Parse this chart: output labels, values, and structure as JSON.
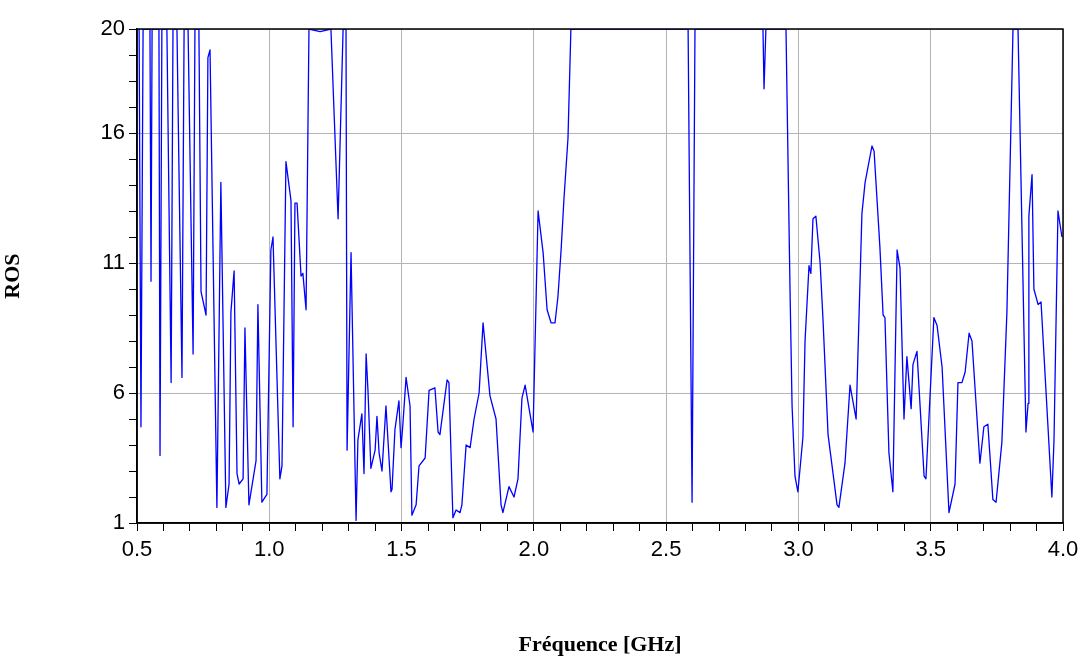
{
  "chart_data": {
    "type": "line",
    "xlabel": "Fréquence [GHz]",
    "ylabel": "ROS",
    "xlim": [
      0.5,
      4.0
    ],
    "ylim": [
      1,
      20
    ],
    "xticks": [
      {
        "value": 0.5,
        "label": "0.5"
      },
      {
        "value": 0.6,
        "label": null
      },
      {
        "value": 0.7,
        "label": null
      },
      {
        "value": 0.8,
        "label": null
      },
      {
        "value": 0.9,
        "label": null
      },
      {
        "value": 1.0,
        "label": "1.0"
      },
      {
        "value": 1.1,
        "label": null
      },
      {
        "value": 1.2,
        "label": null
      },
      {
        "value": 1.3,
        "label": null
      },
      {
        "value": 1.4,
        "label": null
      },
      {
        "value": 1.5,
        "label": "1.5"
      },
      {
        "value": 1.6,
        "label": null
      },
      {
        "value": 1.7,
        "label": null
      },
      {
        "value": 1.8,
        "label": null
      },
      {
        "value": 1.9,
        "label": null
      },
      {
        "value": 2.0,
        "label": "2.0"
      },
      {
        "value": 2.1,
        "label": null
      },
      {
        "value": 2.2,
        "label": null
      },
      {
        "value": 2.3,
        "label": null
      },
      {
        "value": 2.4,
        "label": null
      },
      {
        "value": 2.5,
        "label": "2.5"
      },
      {
        "value": 2.6,
        "label": null
      },
      {
        "value": 2.7,
        "label": null
      },
      {
        "value": 2.8,
        "label": null
      },
      {
        "value": 2.9,
        "label": null
      },
      {
        "value": 3.0,
        "label": "3.0"
      },
      {
        "value": 3.1,
        "label": null
      },
      {
        "value": 3.2,
        "label": null
      },
      {
        "value": 3.3,
        "label": null
      },
      {
        "value": 3.4,
        "label": null
      },
      {
        "value": 3.5,
        "label": "3.5"
      },
      {
        "value": 3.6,
        "label": null
      },
      {
        "value": 3.7,
        "label": null
      },
      {
        "value": 3.8,
        "label": null
      },
      {
        "value": 3.9,
        "label": null
      },
      {
        "value": 4.0,
        "label": "4.0"
      }
    ],
    "yticks": [
      1,
      {
        "value": 2,
        "label": null
      },
      {
        "value": 3,
        "label": null
      },
      {
        "value": 4,
        "label": null
      },
      {
        "value": 5,
        "label": null
      },
      6,
      {
        "value": 7,
        "label": null
      },
      {
        "value": 8,
        "label": null
      },
      {
        "value": 9,
        "label": null
      },
      {
        "value": 10,
        "label": null
      },
      11,
      {
        "value": 12,
        "label": null
      },
      {
        "value": 13,
        "label": null
      },
      {
        "value": 14,
        "label": null
      },
      {
        "value": 15,
        "label": null
      },
      16,
      {
        "value": 17,
        "label": null
      },
      {
        "value": 18,
        "label": null
      },
      {
        "value": 19,
        "label": null
      },
      20
    ],
    "grid": true,
    "x": [
      0.508,
      0.515,
      0.523,
      0.549,
      0.553,
      0.557,
      0.583,
      0.587,
      0.594,
      0.613,
      0.629,
      0.636,
      0.651,
      0.67,
      0.678,
      0.693,
      0.712,
      0.719,
      0.734,
      0.742,
      0.761,
      0.768,
      0.776,
      0.802,
      0.817,
      0.836,
      0.848,
      0.855,
      0.867,
      0.878,
      0.886,
      0.901,
      0.908,
      0.923,
      0.95,
      0.957,
      0.972,
      0.991,
      1.006,
      1.014,
      1.04,
      1.048,
      1.063,
      1.082,
      1.09,
      1.097,
      1.105,
      1.12,
      1.127,
      1.139,
      1.15,
      1.192,
      1.233,
      1.26,
      1.279,
      1.29,
      1.294,
      1.309,
      1.328,
      1.335,
      1.35,
      1.358,
      1.366,
      1.373,
      1.384,
      1.4,
      1.407,
      1.415,
      1.426,
      1.441,
      1.46,
      1.464,
      1.475,
      1.49,
      1.498,
      1.505,
      1.517,
      1.532,
      1.539,
      1.555,
      1.566,
      1.589,
      1.604,
      1.626,
      1.638,
      1.645,
      1.672,
      1.679,
      1.694,
      1.706,
      1.721,
      1.728,
      1.744,
      1.759,
      1.774,
      1.793,
      1.808,
      1.834,
      1.857,
      1.876,
      1.883,
      1.906,
      1.925,
      1.94,
      1.955,
      1.967,
      1.982,
      1.997,
      2.016,
      2.035,
      2.05,
      2.065,
      2.08,
      2.091,
      2.103,
      2.114,
      2.129,
      2.14,
      2.583,
      2.598,
      2.609,
      2.866,
      2.87,
      2.877,
      2.953,
      2.968,
      2.976,
      2.987,
      2.998,
      3.017,
      3.025,
      3.04,
      3.047,
      3.055,
      3.066,
      3.082,
      3.093,
      3.112,
      3.146,
      3.153,
      3.176,
      3.195,
      3.218,
      3.24,
      3.252,
      3.278,
      3.286,
      3.308,
      3.32,
      3.327,
      3.342,
      3.357,
      3.373,
      3.384,
      3.399,
      3.41,
      3.426,
      3.433,
      3.448,
      3.475,
      3.482,
      3.512,
      3.524,
      3.543,
      3.569,
      3.592,
      3.603,
      3.618,
      3.63,
      3.645,
      3.656,
      3.686,
      3.701,
      3.716,
      3.735,
      3.747,
      3.769,
      3.788,
      3.811,
      3.83,
      3.86,
      3.868,
      3.871,
      3.883,
      3.89,
      3.906,
      3.917,
      3.958,
      3.966,
      3.981,
      3.996
    ],
    "series": [
      {
        "color": "#0000ff",
        "values": [
          20,
          4.7,
          20,
          20,
          10.3,
          20,
          20,
          3.6,
          20,
          20,
          6.4,
          20,
          20,
          6.6,
          20,
          20,
          7.5,
          20,
          20,
          9.9,
          9.0,
          18.9,
          19.2,
          1.6,
          14.1,
          1.6,
          2.5,
          9.1,
          10.7,
          2.9,
          2.5,
          2.7,
          8.5,
          1.7,
          3.4,
          9.4,
          1.8,
          2.1,
          11.5,
          12.0,
          2.7,
          3.2,
          14.9,
          13.4,
          4.7,
          13.3,
          13.3,
          10.5,
          10.6,
          9.2,
          20,
          19.9,
          20,
          12.7,
          20,
          20,
          3.8,
          11.4,
          1.1,
          4.2,
          5.2,
          2.9,
          7.5,
          6.1,
          3.1,
          3.8,
          5.1,
          3.7,
          3.0,
          5.5,
          2.2,
          2.3,
          4.6,
          5.7,
          3.9,
          4.8,
          6.6,
          5.5,
          1.3,
          1.7,
          3.2,
          3.5,
          6.1,
          6.2,
          4.5,
          4.4,
          6.5,
          6.4,
          1.2,
          1.5,
          1.4,
          1.7,
          4.0,
          3.9,
          5.0,
          6.0,
          8.7,
          5.9,
          5.0,
          1.7,
          1.4,
          2.4,
          2.0,
          2.7,
          5.8,
          6.3,
          5.4,
          4.5,
          13.0,
          11.4,
          9.2,
          8.7,
          8.7,
          9.7,
          11.5,
          13.5,
          15.8,
          20,
          20,
          1.8,
          20,
          20,
          17.7,
          20,
          20,
          10.1,
          5.5,
          2.8,
          2.2,
          4.3,
          8.0,
          10.9,
          10.6,
          12.7,
          12.8,
          11.0,
          8.8,
          4.4,
          1.7,
          1.6,
          3.3,
          6.3,
          5.0,
          12.9,
          14.1,
          15.5,
          15.3,
          11.6,
          9.0,
          8.9,
          3.7,
          2.2,
          11.5,
          10.8,
          5.0,
          7.4,
          5.4,
          7.1,
          7.6,
          2.8,
          2.7,
          8.9,
          8.6,
          7.0,
          1.4,
          2.5,
          6.4,
          6.4,
          6.8,
          8.3,
          8.0,
          3.3,
          4.7,
          4.8,
          1.9,
          1.8,
          4.1,
          9.1,
          20,
          20,
          4.5,
          5.6,
          12.8,
          14.4,
          10.0,
          9.4,
          9.5,
          2.0,
          4.2,
          13.0,
          12.0
        ]
      }
    ]
  }
}
